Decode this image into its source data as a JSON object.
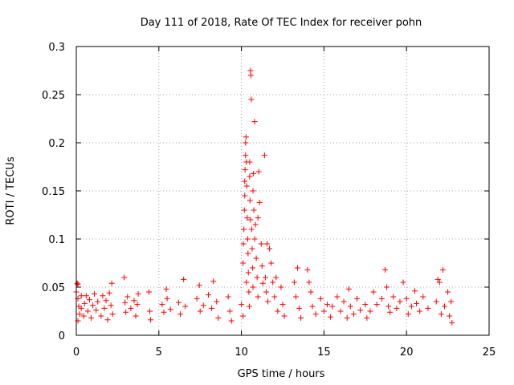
{
  "chart_data": {
    "type": "scatter",
    "title": "Day 111 of 2018, Rate Of TEC Index for receiver pohn",
    "xlabel": "GPS time / hours",
    "ylabel": "ROTI / TECUs",
    "xlim": [
      0,
      25
    ],
    "ylim": [
      0,
      0.3
    ],
    "xticks": [
      0,
      5,
      10,
      15,
      20,
      25
    ],
    "xtick_labels": [
      "0",
      "5",
      "10",
      "15",
      "20",
      "25"
    ],
    "yticks": [
      0,
      0.05,
      0.1,
      0.15,
      0.2,
      0.25,
      0.3
    ],
    "ytick_labels": [
      "0",
      "0.05",
      "0.1",
      "0.15",
      "0.2",
      "0.25",
      "0.3"
    ],
    "grid": true,
    "marker": "+",
    "series": [
      {
        "name": "ROTI",
        "color": "#ff0000",
        "points": [
          [
            0.0,
            0.045
          ],
          [
            0.05,
            0.054
          ],
          [
            0.1,
            0.053
          ],
          [
            0.1,
            0.038
          ],
          [
            0.15,
            0.03
          ],
          [
            0.2,
            0.022
          ],
          [
            0.1,
            0.015
          ],
          [
            0.3,
            0.041
          ],
          [
            0.3,
            0.028
          ],
          [
            0.45,
            0.02
          ],
          [
            0.5,
            0.033
          ],
          [
            0.6,
            0.041
          ],
          [
            0.7,
            0.025
          ],
          [
            0.8,
            0.037
          ],
          [
            0.9,
            0.018
          ],
          [
            1.0,
            0.031
          ],
          [
            1.1,
            0.043
          ],
          [
            1.2,
            0.026
          ],
          [
            1.3,
            0.035
          ],
          [
            1.5,
            0.02
          ],
          [
            1.6,
            0.041
          ],
          [
            1.7,
            0.028
          ],
          [
            1.8,
            0.036
          ],
          [
            1.9,
            0.016
          ],
          [
            2.0,
            0.044
          ],
          [
            2.1,
            0.031
          ],
          [
            2.15,
            0.054
          ],
          [
            2.2,
            0.022
          ],
          [
            2.9,
            0.06
          ],
          [
            2.95,
            0.034
          ],
          [
            3.0,
            0.024
          ],
          [
            3.1,
            0.04
          ],
          [
            3.3,
            0.028
          ],
          [
            3.5,
            0.036
          ],
          [
            3.6,
            0.02
          ],
          [
            3.7,
            0.032
          ],
          [
            3.75,
            0.043
          ],
          [
            4.4,
            0.045
          ],
          [
            4.45,
            0.025
          ],
          [
            4.5,
            0.016
          ],
          [
            5.2,
            0.032
          ],
          [
            5.3,
            0.024
          ],
          [
            5.45,
            0.048
          ],
          [
            5.5,
            0.038
          ],
          [
            5.7,
            0.027
          ],
          [
            6.2,
            0.034
          ],
          [
            6.3,
            0.022
          ],
          [
            6.5,
            0.058
          ],
          [
            6.6,
            0.03
          ],
          [
            7.3,
            0.038
          ],
          [
            7.45,
            0.052
          ],
          [
            7.5,
            0.025
          ],
          [
            7.7,
            0.031
          ],
          [
            8.0,
            0.042
          ],
          [
            8.2,
            0.028
          ],
          [
            8.3,
            0.056
          ],
          [
            8.5,
            0.035
          ],
          [
            8.6,
            0.018
          ],
          [
            9.2,
            0.04
          ],
          [
            9.3,
            0.025
          ],
          [
            9.4,
            0.015
          ],
          [
            10.0,
            0.032
          ],
          [
            10.1,
            0.02
          ],
          [
            10.1,
            0.075
          ],
          [
            10.12,
            0.095
          ],
          [
            10.15,
            0.11
          ],
          [
            10.18,
            0.13
          ],
          [
            10.2,
            0.145
          ],
          [
            10.2,
            0.16
          ],
          [
            10.22,
            0.172
          ],
          [
            10.25,
            0.187
          ],
          [
            10.25,
            0.2
          ],
          [
            10.28,
            0.206
          ],
          [
            10.3,
            0.18
          ],
          [
            10.3,
            0.055
          ],
          [
            10.32,
            0.155
          ],
          [
            10.35,
            0.122
          ],
          [
            10.38,
            0.1
          ],
          [
            10.4,
            0.085
          ],
          [
            10.42,
            0.065
          ],
          [
            10.45,
            0.045
          ],
          [
            10.48,
            0.03
          ],
          [
            10.5,
            0.165
          ],
          [
            10.5,
            0.18
          ],
          [
            10.52,
            0.14
          ],
          [
            10.55,
            0.12
          ],
          [
            10.55,
            0.275
          ],
          [
            10.57,
            0.27
          ],
          [
            10.6,
            0.245
          ],
          [
            10.62,
            0.11
          ],
          [
            10.65,
            0.09
          ],
          [
            10.68,
            0.07
          ],
          [
            10.7,
            0.05
          ],
          [
            10.7,
            0.15
          ],
          [
            10.72,
            0.168
          ],
          [
            10.75,
            0.13
          ],
          [
            10.8,
            0.222
          ],
          [
            10.8,
            0.1
          ],
          [
            10.85,
            0.115
          ],
          [
            10.9,
            0.08
          ],
          [
            10.95,
            0.06
          ],
          [
            11.0,
            0.04
          ],
          [
            11.0,
            0.122
          ],
          [
            11.05,
            0.17
          ],
          [
            11.1,
            0.138
          ],
          [
            11.2,
            0.095
          ],
          [
            11.25,
            0.072
          ],
          [
            11.3,
            0.054
          ],
          [
            11.4,
            0.187
          ],
          [
            11.45,
            0.06
          ],
          [
            11.5,
            0.045
          ],
          [
            11.55,
            0.095
          ],
          [
            11.6,
            0.035
          ],
          [
            11.7,
            0.09
          ],
          [
            11.8,
            0.075
          ],
          [
            11.9,
            0.055
          ],
          [
            12.0,
            0.04
          ],
          [
            12.1,
            0.06
          ],
          [
            12.2,
            0.025
          ],
          [
            12.4,
            0.05
          ],
          [
            12.5,
            0.032
          ],
          [
            12.6,
            0.02
          ],
          [
            13.2,
            0.055
          ],
          [
            13.3,
            0.04
          ],
          [
            13.4,
            0.07
          ],
          [
            13.5,
            0.028
          ],
          [
            13.6,
            0.018
          ],
          [
            14.0,
            0.068
          ],
          [
            14.1,
            0.055
          ],
          [
            14.2,
            0.045
          ],
          [
            14.3,
            0.03
          ],
          [
            14.5,
            0.022
          ],
          [
            14.8,
            0.038
          ],
          [
            15.0,
            0.025
          ],
          [
            15.2,
            0.032
          ],
          [
            15.4,
            0.019
          ],
          [
            15.5,
            0.03
          ],
          [
            15.8,
            0.04
          ],
          [
            16.0,
            0.025
          ],
          [
            16.2,
            0.035
          ],
          [
            16.4,
            0.018
          ],
          [
            16.5,
            0.048
          ],
          [
            16.6,
            0.03
          ],
          [
            16.8,
            0.022
          ],
          [
            17.0,
            0.038
          ],
          [
            17.2,
            0.026
          ],
          [
            17.5,
            0.032
          ],
          [
            17.6,
            0.018
          ],
          [
            17.8,
            0.025
          ],
          [
            18.0,
            0.045
          ],
          [
            18.2,
            0.032
          ],
          [
            18.5,
            0.038
          ],
          [
            18.7,
            0.068
          ],
          [
            18.8,
            0.05
          ],
          [
            18.9,
            0.03
          ],
          [
            19.0,
            0.024
          ],
          [
            19.2,
            0.04
          ],
          [
            19.4,
            0.028
          ],
          [
            19.6,
            0.035
          ],
          [
            19.8,
            0.055
          ],
          [
            20.0,
            0.038
          ],
          [
            20.1,
            0.022
          ],
          [
            20.3,
            0.03
          ],
          [
            20.5,
            0.046
          ],
          [
            20.6,
            0.033
          ],
          [
            20.8,
            0.025
          ],
          [
            21.0,
            0.04
          ],
          [
            21.3,
            0.028
          ],
          [
            21.8,
            0.035
          ],
          [
            21.9,
            0.058
          ],
          [
            22.0,
            0.055
          ],
          [
            22.1,
            0.022
          ],
          [
            22.2,
            0.068
          ],
          [
            22.3,
            0.03
          ],
          [
            22.5,
            0.045
          ],
          [
            22.6,
            0.02
          ],
          [
            22.7,
            0.035
          ],
          [
            22.75,
            0.013
          ]
        ]
      }
    ]
  }
}
